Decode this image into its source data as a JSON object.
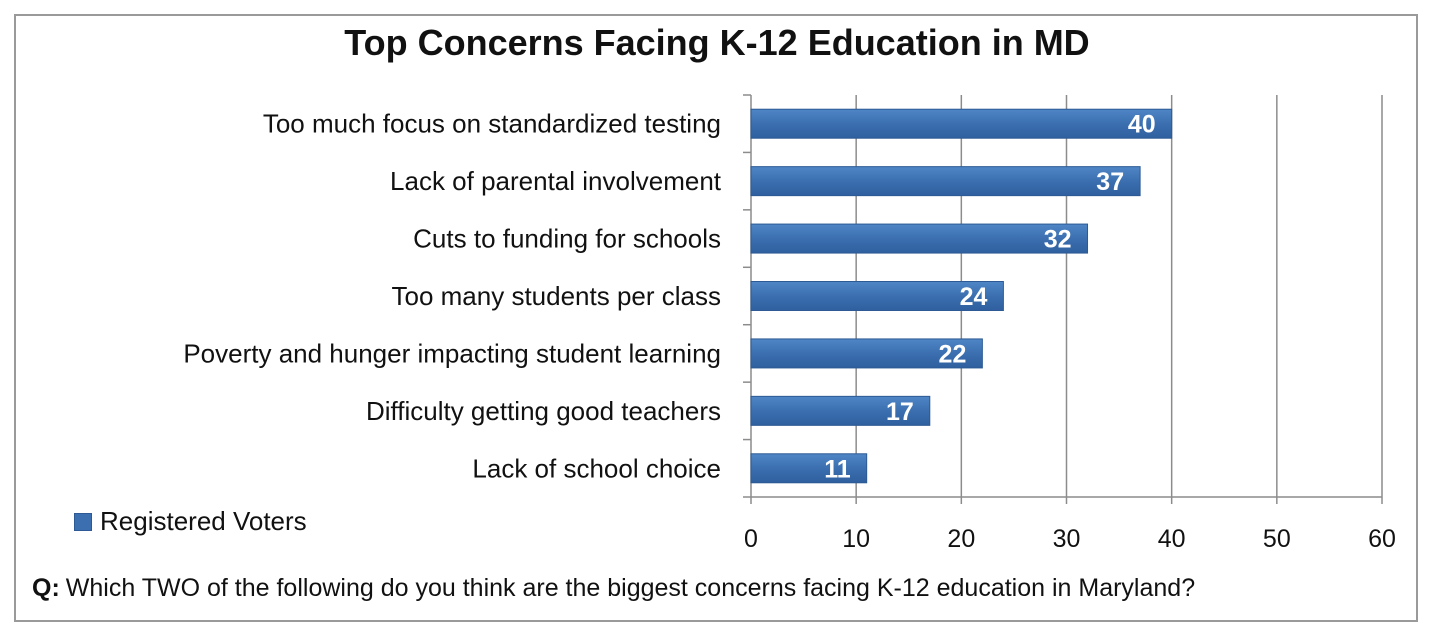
{
  "chart_data": {
    "type": "bar",
    "orientation": "horizontal",
    "title": "Top Concerns Facing K-12 Education in MD",
    "categories": [
      "Too much focus on standardized testing",
      "Lack of parental involvement",
      "Cuts to funding for schools",
      "Too many students per class",
      "Poverty and hunger impacting student learning",
      "Difficulty getting good teachers",
      "Lack of school choice"
    ],
    "series": [
      {
        "name": "Registered Voters",
        "values": [
          40,
          37,
          32,
          24,
          22,
          17,
          11
        ]
      }
    ],
    "xlim": [
      0,
      60
    ],
    "xticks": [
      0,
      10,
      20,
      30,
      40,
      50,
      60
    ],
    "grid": true,
    "legend_position": "bottom-left",
    "colors": {
      "bar": "#3b6fb0",
      "bar_edge": "#2d5a94",
      "grid": "#8c8c8c",
      "label": "#ffffff"
    }
  },
  "legend": {
    "label": "Registered Voters"
  },
  "question": {
    "prefix": "Q:",
    "text": "Which TWO of the following do you think are the biggest concerns facing K-12 education in Maryland?"
  }
}
